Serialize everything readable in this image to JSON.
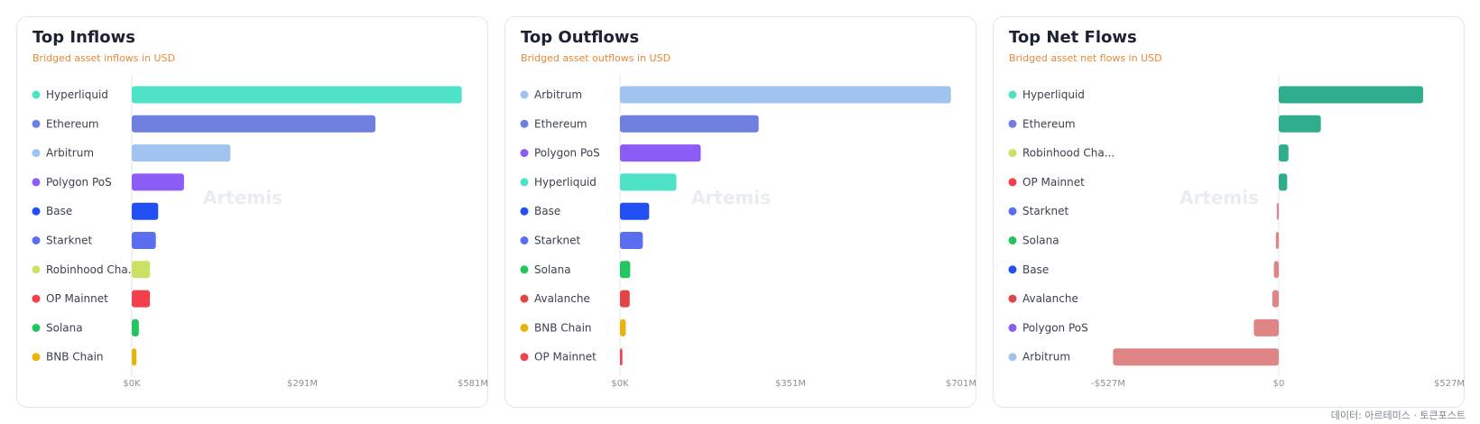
{
  "footer": "데이터: 아르테미스 · 토큰포스트",
  "chart_data": [
    {
      "type": "bar",
      "orientation": "horizontal",
      "title": "Top Inflows",
      "subtitle": "Bridged asset inflows in USD",
      "watermark": "Artemis",
      "categories": [
        "Hyperliquid",
        "Ethereum",
        "Arbitrum",
        "Polygon PoS",
        "Base",
        "Starknet",
        "Robinhood Cha...",
        "OP Mainnet",
        "Solana",
        "BNB Chain"
      ],
      "values": [
        562,
        415,
        168,
        89,
        45,
        41,
        31,
        31,
        12,
        8
      ],
      "unit": "M USD",
      "colors": [
        "#4ee3c8",
        "#6e7fe0",
        "#a0c3f0",
        "#8b5cf6",
        "#2250f4",
        "#5b6ef0",
        "#c9e265",
        "#f43f4e",
        "#22c55e",
        "#eab308"
      ],
      "xlim": [
        0,
        581
      ],
      "xticks": [
        "$0K",
        "$291M",
        "$581M"
      ],
      "grid": false,
      "legend": "none"
    },
    {
      "type": "bar",
      "orientation": "horizontal",
      "title": "Top Outflows",
      "subtitle": "Bridged asset outflows in USD",
      "watermark": "Artemis",
      "categories": [
        "Arbitrum",
        "Ethereum",
        "Polygon PoS",
        "Hyperliquid",
        "Base",
        "Starknet",
        "Solana",
        "Avalanche",
        "BNB Chain",
        "OP Mainnet"
      ],
      "values": [
        680,
        285,
        166,
        116,
        60,
        47,
        21,
        20,
        12,
        5
      ],
      "unit": "M USD",
      "colors": [
        "#a0c3f0",
        "#6e7fe0",
        "#8b5cf6",
        "#4ee3c8",
        "#2250f4",
        "#5b6ef0",
        "#22c55e",
        "#e24545",
        "#eab308",
        "#f43f4e"
      ],
      "xlim": [
        0,
        701
      ],
      "xticks": [
        "$0K",
        "$351M",
        "$701M"
      ],
      "grid": false,
      "legend": "none"
    },
    {
      "type": "bar",
      "orientation": "horizontal",
      "title": "Top Net Flows",
      "subtitle": "Bridged asset net flows in USD",
      "watermark": "Artemis",
      "categories": [
        "Hyperliquid",
        "Ethereum",
        "Robinhood Cha...",
        "OP Mainnet",
        "Starknet",
        "Solana",
        "Base",
        "Avalanche",
        "Polygon PoS",
        "Arbitrum"
      ],
      "values": [
        446,
        130,
        30,
        26,
        -6,
        -9,
        -15,
        -20,
        -77,
        -512
      ],
      "unit": "M USD",
      "dot_colors": [
        "#4ee3c8",
        "#6e7fe0",
        "#c9e265",
        "#f43f4e",
        "#5b6ef0",
        "#22c55e",
        "#2250f4",
        "#e24545",
        "#8b5cf6",
        "#a0c3f0"
      ],
      "positive_color": "#2fae8e",
      "negative_color": "#e08585",
      "xlim": [
        -527,
        527
      ],
      "xticks": [
        "-$527M",
        "$0",
        "$527M"
      ],
      "grid": false,
      "legend": "none"
    }
  ]
}
